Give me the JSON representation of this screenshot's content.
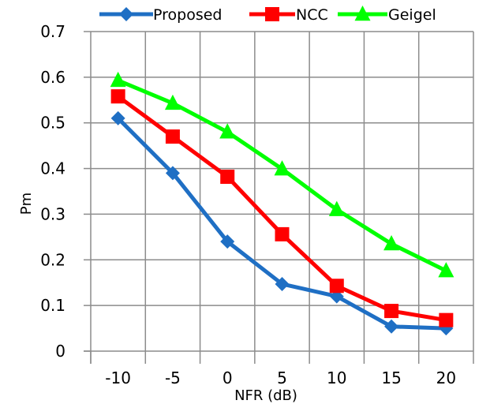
{
  "chart_data": {
    "type": "line",
    "xlabel": "NFR (dB)",
    "ylabel": "Pm",
    "categories": [
      "-10",
      "-5",
      "0",
      "5",
      "10",
      "15",
      "20"
    ],
    "ylim": [
      0,
      0.7
    ],
    "yticks": [
      "0",
      "0.1",
      "0.2",
      "0.3",
      "0.4",
      "0.5",
      "0.6",
      "0.7"
    ],
    "grid": true,
    "legend_position": "top",
    "series": [
      {
        "name": "Proposed",
        "color": "#1f6fc4",
        "marker": "diamond",
        "values": [
          0.51,
          0.39,
          0.24,
          0.147,
          0.12,
          0.054,
          0.05
        ]
      },
      {
        "name": "NCC",
        "color": "#ff0000",
        "marker": "square",
        "values": [
          0.558,
          0.47,
          0.382,
          0.256,
          0.143,
          0.088,
          0.068
        ]
      },
      {
        "name": "Geigel",
        "color": "#00ff00",
        "marker": "triangle",
        "values": [
          0.593,
          0.543,
          0.48,
          0.399,
          0.31,
          0.235,
          0.176
        ]
      }
    ]
  }
}
